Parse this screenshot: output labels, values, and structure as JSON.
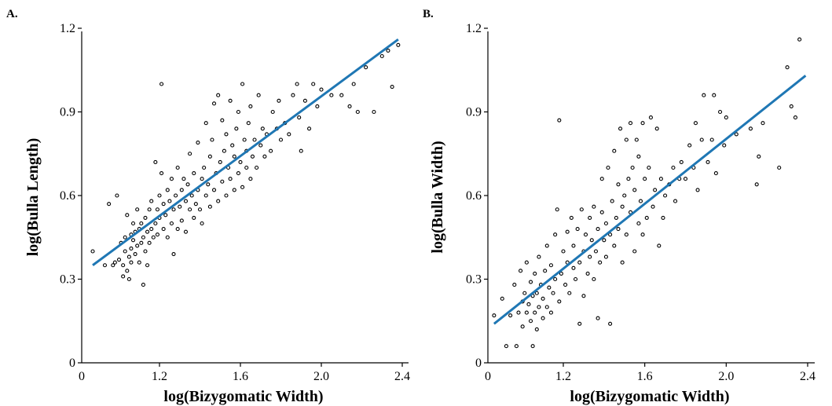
{
  "chart_data": [
    {
      "panel": "A.",
      "type": "scatter",
      "xlabel": "log(Bizygomatic Width)",
      "ylabel": "log(Bulla Length)",
      "xlim": [
        0.8,
        2.45
      ],
      "ylim": [
        0,
        1.2
      ],
      "xticks": [
        1.2,
        1.6,
        2.0,
        2.4
      ],
      "xtick_labels": [
        "1.2",
        "1.6",
        "2.0",
        "2.4"
      ],
      "x_origin_label": "0",
      "yticks": [
        0,
        0.3,
        0.6,
        0.9,
        1.2
      ],
      "ytick_labels": [
        "0",
        "0.3",
        "0.6",
        "0.9",
        "1.2"
      ],
      "fit_line": {
        "x": [
          0.87,
          2.38
        ],
        "y": [
          0.35,
          1.16
        ]
      },
      "points": [
        [
          0.87,
          0.4
        ],
        [
          0.93,
          0.35
        ],
        [
          0.95,
          0.57
        ],
        [
          0.97,
          0.35
        ],
        [
          0.98,
          0.36
        ],
        [
          0.99,
          0.6
        ],
        [
          1.0,
          0.37
        ],
        [
          1.01,
          0.43
        ],
        [
          1.02,
          0.35
        ],
        [
          1.02,
          0.31
        ],
        [
          1.03,
          0.45
        ],
        [
          1.03,
          0.4
        ],
        [
          1.04,
          0.33
        ],
        [
          1.04,
          0.53
        ],
        [
          1.05,
          0.38
        ],
        [
          1.05,
          0.3
        ],
        [
          1.06,
          0.46
        ],
        [
          1.06,
          0.41
        ],
        [
          1.06,
          0.36
        ],
        [
          1.07,
          0.5
        ],
        [
          1.07,
          0.44
        ],
        [
          1.08,
          0.47
        ],
        [
          1.08,
          0.39
        ],
        [
          1.09,
          0.42
        ],
        [
          1.09,
          0.55
        ],
        [
          1.1,
          0.48
        ],
        [
          1.1,
          0.36
        ],
        [
          1.11,
          0.43
        ],
        [
          1.11,
          0.5
        ],
        [
          1.12,
          0.28
        ],
        [
          1.12,
          0.45
        ],
        [
          1.13,
          0.52
        ],
        [
          1.13,
          0.4
        ],
        [
          1.14,
          0.47
        ],
        [
          1.14,
          0.35
        ],
        [
          1.15,
          0.43
        ],
        [
          1.15,
          0.55
        ],
        [
          1.16,
          0.48
        ],
        [
          1.16,
          0.58
        ],
        [
          1.17,
          0.45
        ],
        [
          1.18,
          0.5
        ],
        [
          1.18,
          0.72
        ],
        [
          1.19,
          0.55
        ],
        [
          1.19,
          0.46
        ],
        [
          1.2,
          0.6
        ],
        [
          1.2,
          0.52
        ],
        [
          1.21,
          1.0
        ],
        [
          1.21,
          0.68
        ],
        [
          1.22,
          0.48
        ],
        [
          1.22,
          0.57
        ],
        [
          1.23,
          0.53
        ],
        [
          1.24,
          0.62
        ],
        [
          1.24,
          0.45
        ],
        [
          1.25,
          0.58
        ],
        [
          1.26,
          0.5
        ],
        [
          1.26,
          0.66
        ],
        [
          1.27,
          0.39
        ],
        [
          1.27,
          0.55
        ],
        [
          1.28,
          0.6
        ],
        [
          1.29,
          0.48
        ],
        [
          1.29,
          0.7
        ],
        [
          1.3,
          0.56
        ],
        [
          1.31,
          0.62
        ],
        [
          1.31,
          0.51
        ],
        [
          1.32,
          0.66
        ],
        [
          1.33,
          0.58
        ],
        [
          1.33,
          0.47
        ],
        [
          1.34,
          0.64
        ],
        [
          1.35,
          0.55
        ],
        [
          1.35,
          0.75
        ],
        [
          1.36,
          0.6
        ],
        [
          1.37,
          0.52
        ],
        [
          1.37,
          0.68
        ],
        [
          1.38,
          0.57
        ],
        [
          1.39,
          0.62
        ],
        [
          1.39,
          0.79
        ],
        [
          1.4,
          0.55
        ],
        [
          1.41,
          0.66
        ],
        [
          1.41,
          0.5
        ],
        [
          1.42,
          0.7
        ],
        [
          1.43,
          0.6
        ],
        [
          1.43,
          0.86
        ],
        [
          1.44,
          0.64
        ],
        [
          1.45,
          0.56
        ],
        [
          1.45,
          0.74
        ],
        [
          1.46,
          0.8
        ],
        [
          1.47,
          0.62
        ],
        [
          1.47,
          0.93
        ],
        [
          1.48,
          0.68
        ],
        [
          1.49,
          0.58
        ],
        [
          1.49,
          0.96
        ],
        [
          1.5,
          0.72
        ],
        [
          1.51,
          0.65
        ],
        [
          1.51,
          0.87
        ],
        [
          1.52,
          0.76
        ],
        [
          1.53,
          0.6
        ],
        [
          1.53,
          0.82
        ],
        [
          1.54,
          0.7
        ],
        [
          1.55,
          0.94
        ],
        [
          1.55,
          0.66
        ],
        [
          1.56,
          0.78
        ],
        [
          1.57,
          0.62
        ],
        [
          1.57,
          0.74
        ],
        [
          1.58,
          0.84
        ],
        [
          1.59,
          0.68
        ],
        [
          1.59,
          0.9
        ],
        [
          1.6,
          0.72
        ],
        [
          1.61,
          0.63
        ],
        [
          1.61,
          1.0
        ],
        [
          1.62,
          0.8
        ],
        [
          1.63,
          0.7
        ],
        [
          1.63,
          0.76
        ],
        [
          1.64,
          0.86
        ],
        [
          1.65,
          0.66
        ],
        [
          1.65,
          0.92
        ],
        [
          1.66,
          0.74
        ],
        [
          1.67,
          0.8
        ],
        [
          1.68,
          0.7
        ],
        [
          1.69,
          0.96
        ],
        [
          1.7,
          0.78
        ],
        [
          1.71,
          0.84
        ],
        [
          1.72,
          0.74
        ],
        [
          1.73,
          0.82
        ],
        [
          1.75,
          0.76
        ],
        [
          1.76,
          0.9
        ],
        [
          1.78,
          0.84
        ],
        [
          1.79,
          0.94
        ],
        [
          1.8,
          0.8
        ],
        [
          1.82,
          0.86
        ],
        [
          1.84,
          0.82
        ],
        [
          1.86,
          0.96
        ],
        [
          1.88,
          1.0
        ],
        [
          1.89,
          0.88
        ],
        [
          1.9,
          0.76
        ],
        [
          1.92,
          0.94
        ],
        [
          1.94,
          0.84
        ],
        [
          1.96,
          1.0
        ],
        [
          1.98,
          0.92
        ],
        [
          2.0,
          0.98
        ],
        [
          2.05,
          0.96
        ],
        [
          2.1,
          0.96
        ],
        [
          2.14,
          0.92
        ],
        [
          2.16,
          1.0
        ],
        [
          2.18,
          0.9
        ],
        [
          2.22,
          1.06
        ],
        [
          2.26,
          0.9
        ],
        [
          2.3,
          1.1
        ],
        [
          2.33,
          1.12
        ],
        [
          2.35,
          0.99
        ],
        [
          2.38,
          1.14
        ]
      ]
    },
    {
      "panel": "B.",
      "type": "scatter",
      "xlabel": "log(Bizygomatic Width)",
      "ylabel": "log(Bulla Width)",
      "xlim": [
        0.8,
        2.45
      ],
      "ylim": [
        0,
        1.2
      ],
      "xticks": [
        1.2,
        1.6,
        2.0,
        2.4
      ],
      "xtick_labels": [
        "1.2",
        "1.6",
        "2.0",
        "2.4"
      ],
      "x_origin_label": "0",
      "yticks": [
        0,
        0.3,
        0.6,
        0.9,
        1.2
      ],
      "ytick_labels": [
        "0",
        "0.3",
        "0.6",
        "0.9",
        "1.2"
      ],
      "fit_line": {
        "x": [
          0.86,
          2.39
        ],
        "y": [
          0.14,
          1.03
        ]
      },
      "points": [
        [
          0.86,
          0.17
        ],
        [
          0.9,
          0.23
        ],
        [
          0.92,
          0.06
        ],
        [
          0.94,
          0.17
        ],
        [
          0.96,
          0.28
        ],
        [
          0.97,
          0.06
        ],
        [
          0.98,
          0.18
        ],
        [
          0.99,
          0.33
        ],
        [
          1.0,
          0.22
        ],
        [
          1.0,
          0.13
        ],
        [
          1.01,
          0.25
        ],
        [
          1.02,
          0.18
        ],
        [
          1.02,
          0.36
        ],
        [
          1.03,
          0.21
        ],
        [
          1.04,
          0.15
        ],
        [
          1.04,
          0.29
        ],
        [
          1.05,
          0.06
        ],
        [
          1.05,
          0.24
        ],
        [
          1.06,
          0.18
        ],
        [
          1.06,
          0.32
        ],
        [
          1.07,
          0.12
        ],
        [
          1.07,
          0.25
        ],
        [
          1.08,
          0.2
        ],
        [
          1.08,
          0.38
        ],
        [
          1.09,
          0.28
        ],
        [
          1.1,
          0.16
        ],
        [
          1.1,
          0.23
        ],
        [
          1.11,
          0.33
        ],
        [
          1.12,
          0.2
        ],
        [
          1.12,
          0.42
        ],
        [
          1.13,
          0.27
        ],
        [
          1.14,
          0.18
        ],
        [
          1.14,
          0.35
        ],
        [
          1.15,
          0.25
        ],
        [
          1.16,
          0.46
        ],
        [
          1.16,
          0.3
        ],
        [
          1.17,
          0.55
        ],
        [
          1.18,
          0.22
        ],
        [
          1.18,
          0.87
        ],
        [
          1.19,
          0.32
        ],
        [
          1.2,
          0.4
        ],
        [
          1.21,
          0.28
        ],
        [
          1.22,
          0.47
        ],
        [
          1.22,
          0.36
        ],
        [
          1.23,
          0.25
        ],
        [
          1.24,
          0.52
        ],
        [
          1.25,
          0.34
        ],
        [
          1.25,
          0.42
        ],
        [
          1.26,
          0.3
        ],
        [
          1.27,
          0.48
        ],
        [
          1.28,
          0.36
        ],
        [
          1.28,
          0.14
        ],
        [
          1.29,
          0.55
        ],
        [
          1.3,
          0.4
        ],
        [
          1.3,
          0.24
        ],
        [
          1.31,
          0.46
        ],
        [
          1.32,
          0.32
        ],
        [
          1.33,
          0.52
        ],
        [
          1.33,
          0.38
        ],
        [
          1.34,
          0.44
        ],
        [
          1.35,
          0.3
        ],
        [
          1.35,
          0.56
        ],
        [
          1.36,
          0.4
        ],
        [
          1.37,
          0.48
        ],
        [
          1.37,
          0.16
        ],
        [
          1.38,
          0.36
        ],
        [
          1.39,
          0.54
        ],
        [
          1.39,
          0.66
        ],
        [
          1.4,
          0.44
        ],
        [
          1.41,
          0.5
        ],
        [
          1.41,
          0.38
        ],
        [
          1.42,
          0.7
        ],
        [
          1.43,
          0.46
        ],
        [
          1.43,
          0.14
        ],
        [
          1.44,
          0.58
        ],
        [
          1.45,
          0.76
        ],
        [
          1.45,
          0.42
        ],
        [
          1.46,
          0.52
        ],
        [
          1.47,
          0.64
        ],
        [
          1.47,
          0.48
        ],
        [
          1.48,
          0.84
        ],
        [
          1.49,
          0.56
        ],
        [
          1.49,
          0.36
        ],
        [
          1.5,
          0.6
        ],
        [
          1.51,
          0.8
        ],
        [
          1.51,
          0.46
        ],
        [
          1.52,
          0.66
        ],
        [
          1.53,
          0.86
        ],
        [
          1.53,
          0.54
        ],
        [
          1.54,
          0.7
        ],
        [
          1.55,
          0.4
        ],
        [
          1.55,
          0.62
        ],
        [
          1.56,
          0.8
        ],
        [
          1.57,
          0.5
        ],
        [
          1.57,
          0.74
        ],
        [
          1.58,
          0.58
        ],
        [
          1.59,
          0.86
        ],
        [
          1.59,
          0.46
        ],
        [
          1.6,
          0.66
        ],
        [
          1.61,
          0.52
        ],
        [
          1.62,
          0.7
        ],
        [
          1.63,
          0.88
        ],
        [
          1.64,
          0.56
        ],
        [
          1.65,
          0.62
        ],
        [
          1.66,
          0.84
        ],
        [
          1.67,
          0.42
        ],
        [
          1.68,
          0.66
        ],
        [
          1.69,
          0.52
        ],
        [
          1.7,
          0.6
        ],
        [
          1.72,
          0.64
        ],
        [
          1.74,
          0.7
        ],
        [
          1.75,
          0.58
        ],
        [
          1.77,
          0.66
        ],
        [
          1.78,
          0.72
        ],
        [
          1.8,
          0.66
        ],
        [
          1.82,
          0.78
        ],
        [
          1.84,
          0.7
        ],
        [
          1.85,
          0.86
        ],
        [
          1.86,
          0.62
        ],
        [
          1.88,
          0.8
        ],
        [
          1.89,
          0.96
        ],
        [
          1.91,
          0.72
        ],
        [
          1.93,
          0.8
        ],
        [
          1.94,
          0.96
        ],
        [
          1.95,
          0.68
        ],
        [
          1.97,
          0.9
        ],
        [
          1.99,
          0.78
        ],
        [
          2.0,
          0.88
        ],
        [
          2.05,
          0.82
        ],
        [
          2.12,
          0.84
        ],
        [
          2.15,
          0.64
        ],
        [
          2.16,
          0.74
        ],
        [
          2.18,
          0.86
        ],
        [
          2.26,
          0.7
        ],
        [
          2.3,
          1.06
        ],
        [
          2.32,
          0.92
        ],
        [
          2.34,
          0.88
        ],
        [
          2.36,
          1.16
        ]
      ]
    }
  ]
}
